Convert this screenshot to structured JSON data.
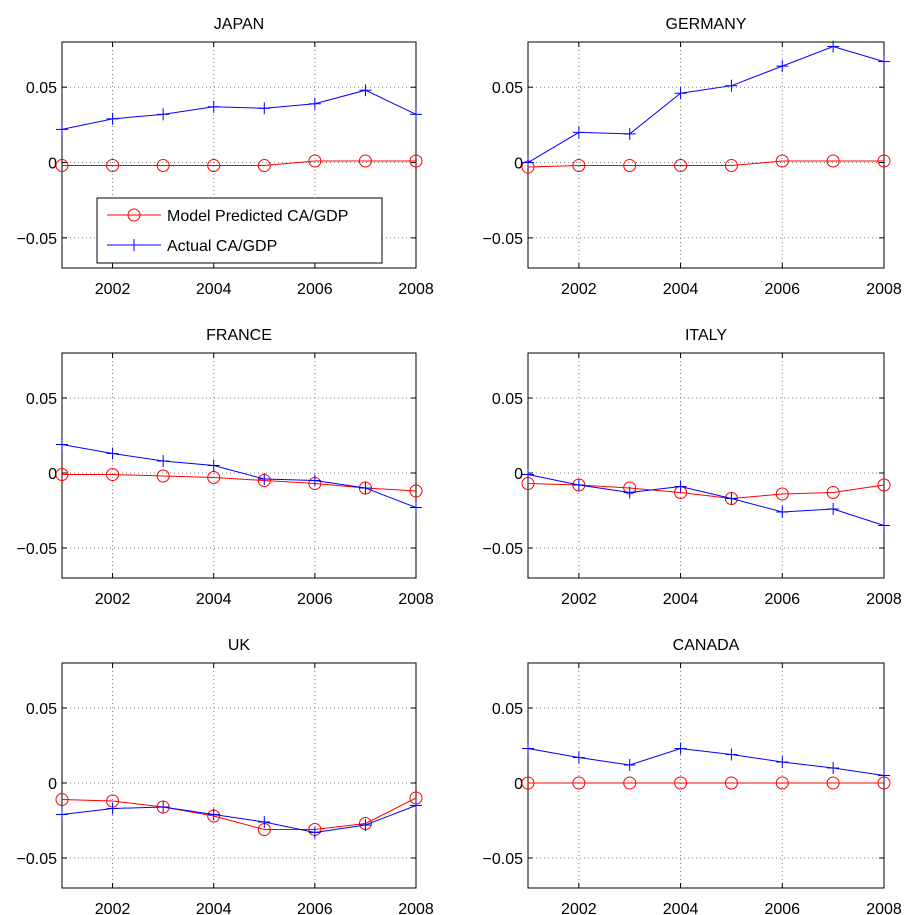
{
  "legend": {
    "model_label": "Model Predicted CA/GDP",
    "actual_label": "Actual CA/GDP",
    "placement": "inside JAPAN panel, lower-left"
  },
  "colors": {
    "model": "#ff0000",
    "actual": "#0000ff",
    "grid": "#808080",
    "axis": "#000000"
  },
  "chart_data": [
    {
      "type": "line",
      "title": "JAPAN",
      "x": [
        2001,
        2002,
        2003,
        2004,
        2005,
        2006,
        2007,
        2008
      ],
      "xticks": [
        2002,
        2004,
        2006,
        2008
      ],
      "xtick_labels": [
        "2002",
        "2004",
        "2006",
        "2008"
      ],
      "yticks": [
        -0.05,
        0,
        0.05
      ],
      "ytick_labels": [
        "−0.05",
        "0",
        "0.05"
      ],
      "xlim": [
        2001,
        2008
      ],
      "ylim": [
        -0.07,
        0.08
      ],
      "grid": "dotted",
      "series": [
        {
          "name": "Model Predicted CA/GDP",
          "marker": "circle",
          "color": "#ff0000",
          "values": [
            -0.002,
            -0.002,
            -0.002,
            -0.002,
            -0.002,
            0.001,
            0.001,
            0.001
          ]
        },
        {
          "name": "Actual CA/GDP",
          "marker": "plus",
          "color": "#0000ff",
          "values": [
            0.022,
            0.029,
            0.032,
            0.037,
            0.036,
            0.039,
            0.048,
            0.032
          ]
        }
      ]
    },
    {
      "type": "line",
      "title": "GERMANY",
      "x": [
        2001,
        2002,
        2003,
        2004,
        2005,
        2006,
        2007,
        2008
      ],
      "xticks": [
        2002,
        2004,
        2006,
        2008
      ],
      "xtick_labels": [
        "2002",
        "2004",
        "2006",
        "2008"
      ],
      "yticks": [
        -0.05,
        0,
        0.05
      ],
      "ytick_labels": [
        "−0.05",
        "0",
        "0.05"
      ],
      "xlim": [
        2001,
        2008
      ],
      "ylim": [
        -0.07,
        0.08
      ],
      "grid": "dotted",
      "series": [
        {
          "name": "Model Predicted CA/GDP",
          "marker": "circle",
          "color": "#ff0000",
          "values": [
            -0.003,
            -0.002,
            -0.002,
            -0.002,
            -0.002,
            0.001,
            0.001,
            0.001
          ]
        },
        {
          "name": "Actual CA/GDP",
          "marker": "plus",
          "color": "#0000ff",
          "values": [
            0.0,
            0.02,
            0.019,
            0.046,
            0.051,
            0.064,
            0.077,
            0.067
          ]
        }
      ]
    },
    {
      "type": "line",
      "title": "FRANCE",
      "x": [
        2001,
        2002,
        2003,
        2004,
        2005,
        2006,
        2007,
        2008
      ],
      "xticks": [
        2002,
        2004,
        2006,
        2008
      ],
      "xtick_labels": [
        "2002",
        "2004",
        "2006",
        "2008"
      ],
      "yticks": [
        -0.05,
        0,
        0.05
      ],
      "ytick_labels": [
        "−0.05",
        "0",
        "0.05"
      ],
      "xlim": [
        2001,
        2008
      ],
      "ylim": [
        -0.07,
        0.08
      ],
      "grid": "dotted",
      "series": [
        {
          "name": "Model Predicted CA/GDP",
          "marker": "circle",
          "color": "#ff0000",
          "values": [
            -0.001,
            -0.001,
            -0.002,
            -0.003,
            -0.005,
            -0.007,
            -0.01,
            -0.012
          ]
        },
        {
          "name": "Actual CA/GDP",
          "marker": "plus",
          "color": "#0000ff",
          "values": [
            0.019,
            0.013,
            0.008,
            0.005,
            -0.004,
            -0.005,
            -0.01,
            -0.023
          ]
        }
      ]
    },
    {
      "type": "line",
      "title": "ITALY",
      "x": [
        2001,
        2002,
        2003,
        2004,
        2005,
        2006,
        2007,
        2008
      ],
      "xticks": [
        2002,
        2004,
        2006,
        2008
      ],
      "xtick_labels": [
        "2002",
        "2004",
        "2006",
        "2008"
      ],
      "yticks": [
        -0.05,
        0,
        0.05
      ],
      "ytick_labels": [
        "−0.05",
        "0",
        "0.05"
      ],
      "xlim": [
        2001,
        2008
      ],
      "ylim": [
        -0.07,
        0.08
      ],
      "grid": "dotted",
      "series": [
        {
          "name": "Model Predicted CA/GDP",
          "marker": "circle",
          "color": "#ff0000",
          "values": [
            -0.007,
            -0.008,
            -0.01,
            -0.013,
            -0.017,
            -0.014,
            -0.013,
            -0.008
          ]
        },
        {
          "name": "Actual CA/GDP",
          "marker": "plus",
          "color": "#0000ff",
          "values": [
            -0.001,
            -0.008,
            -0.013,
            -0.009,
            -0.017,
            -0.026,
            -0.024,
            -0.035
          ]
        }
      ]
    },
    {
      "type": "line",
      "title": "UK",
      "x": [
        2001,
        2002,
        2003,
        2004,
        2005,
        2006,
        2007,
        2008
      ],
      "xticks": [
        2002,
        2004,
        2006,
        2008
      ],
      "xtick_labels": [
        "2002",
        "2004",
        "2006",
        "2008"
      ],
      "yticks": [
        -0.05,
        0,
        0.05
      ],
      "ytick_labels": [
        "−0.05",
        "0",
        "0.05"
      ],
      "xlim": [
        2001,
        2008
      ],
      "ylim": [
        -0.07,
        0.08
      ],
      "grid": "dotted",
      "series": [
        {
          "name": "Model Predicted CA/GDP",
          "marker": "circle",
          "color": "#ff0000",
          "values": [
            -0.011,
            -0.012,
            -0.016,
            -0.022,
            -0.031,
            -0.031,
            -0.027,
            -0.01
          ]
        },
        {
          "name": "Actual CA/GDP",
          "marker": "plus",
          "color": "#0000ff",
          "values": [
            -0.021,
            -0.017,
            -0.016,
            -0.021,
            -0.026,
            -0.033,
            -0.028,
            -0.015
          ]
        }
      ]
    },
    {
      "type": "line",
      "title": "CANADA",
      "x": [
        2001,
        2002,
        2003,
        2004,
        2005,
        2006,
        2007,
        2008
      ],
      "xticks": [
        2002,
        2004,
        2006,
        2008
      ],
      "xtick_labels": [
        "2002",
        "2004",
        "2006",
        "2008"
      ],
      "yticks": [
        -0.05,
        0,
        0.05
      ],
      "ytick_labels": [
        "−0.05",
        "0",
        "0.05"
      ],
      "xlim": [
        2001,
        2008
      ],
      "ylim": [
        -0.07,
        0.08
      ],
      "grid": "dotted",
      "series": [
        {
          "name": "Model Predicted CA/GDP",
          "marker": "circle",
          "color": "#ff0000",
          "values": [
            0.0,
            0.0,
            0.0,
            0.0,
            0.0,
            0.0,
            0.0,
            0.0
          ]
        },
        {
          "name": "Actual CA/GDP",
          "marker": "plus",
          "color": "#0000ff",
          "values": [
            0.023,
            0.017,
            0.012,
            0.023,
            0.019,
            0.014,
            0.01,
            0.005
          ]
        }
      ]
    }
  ]
}
